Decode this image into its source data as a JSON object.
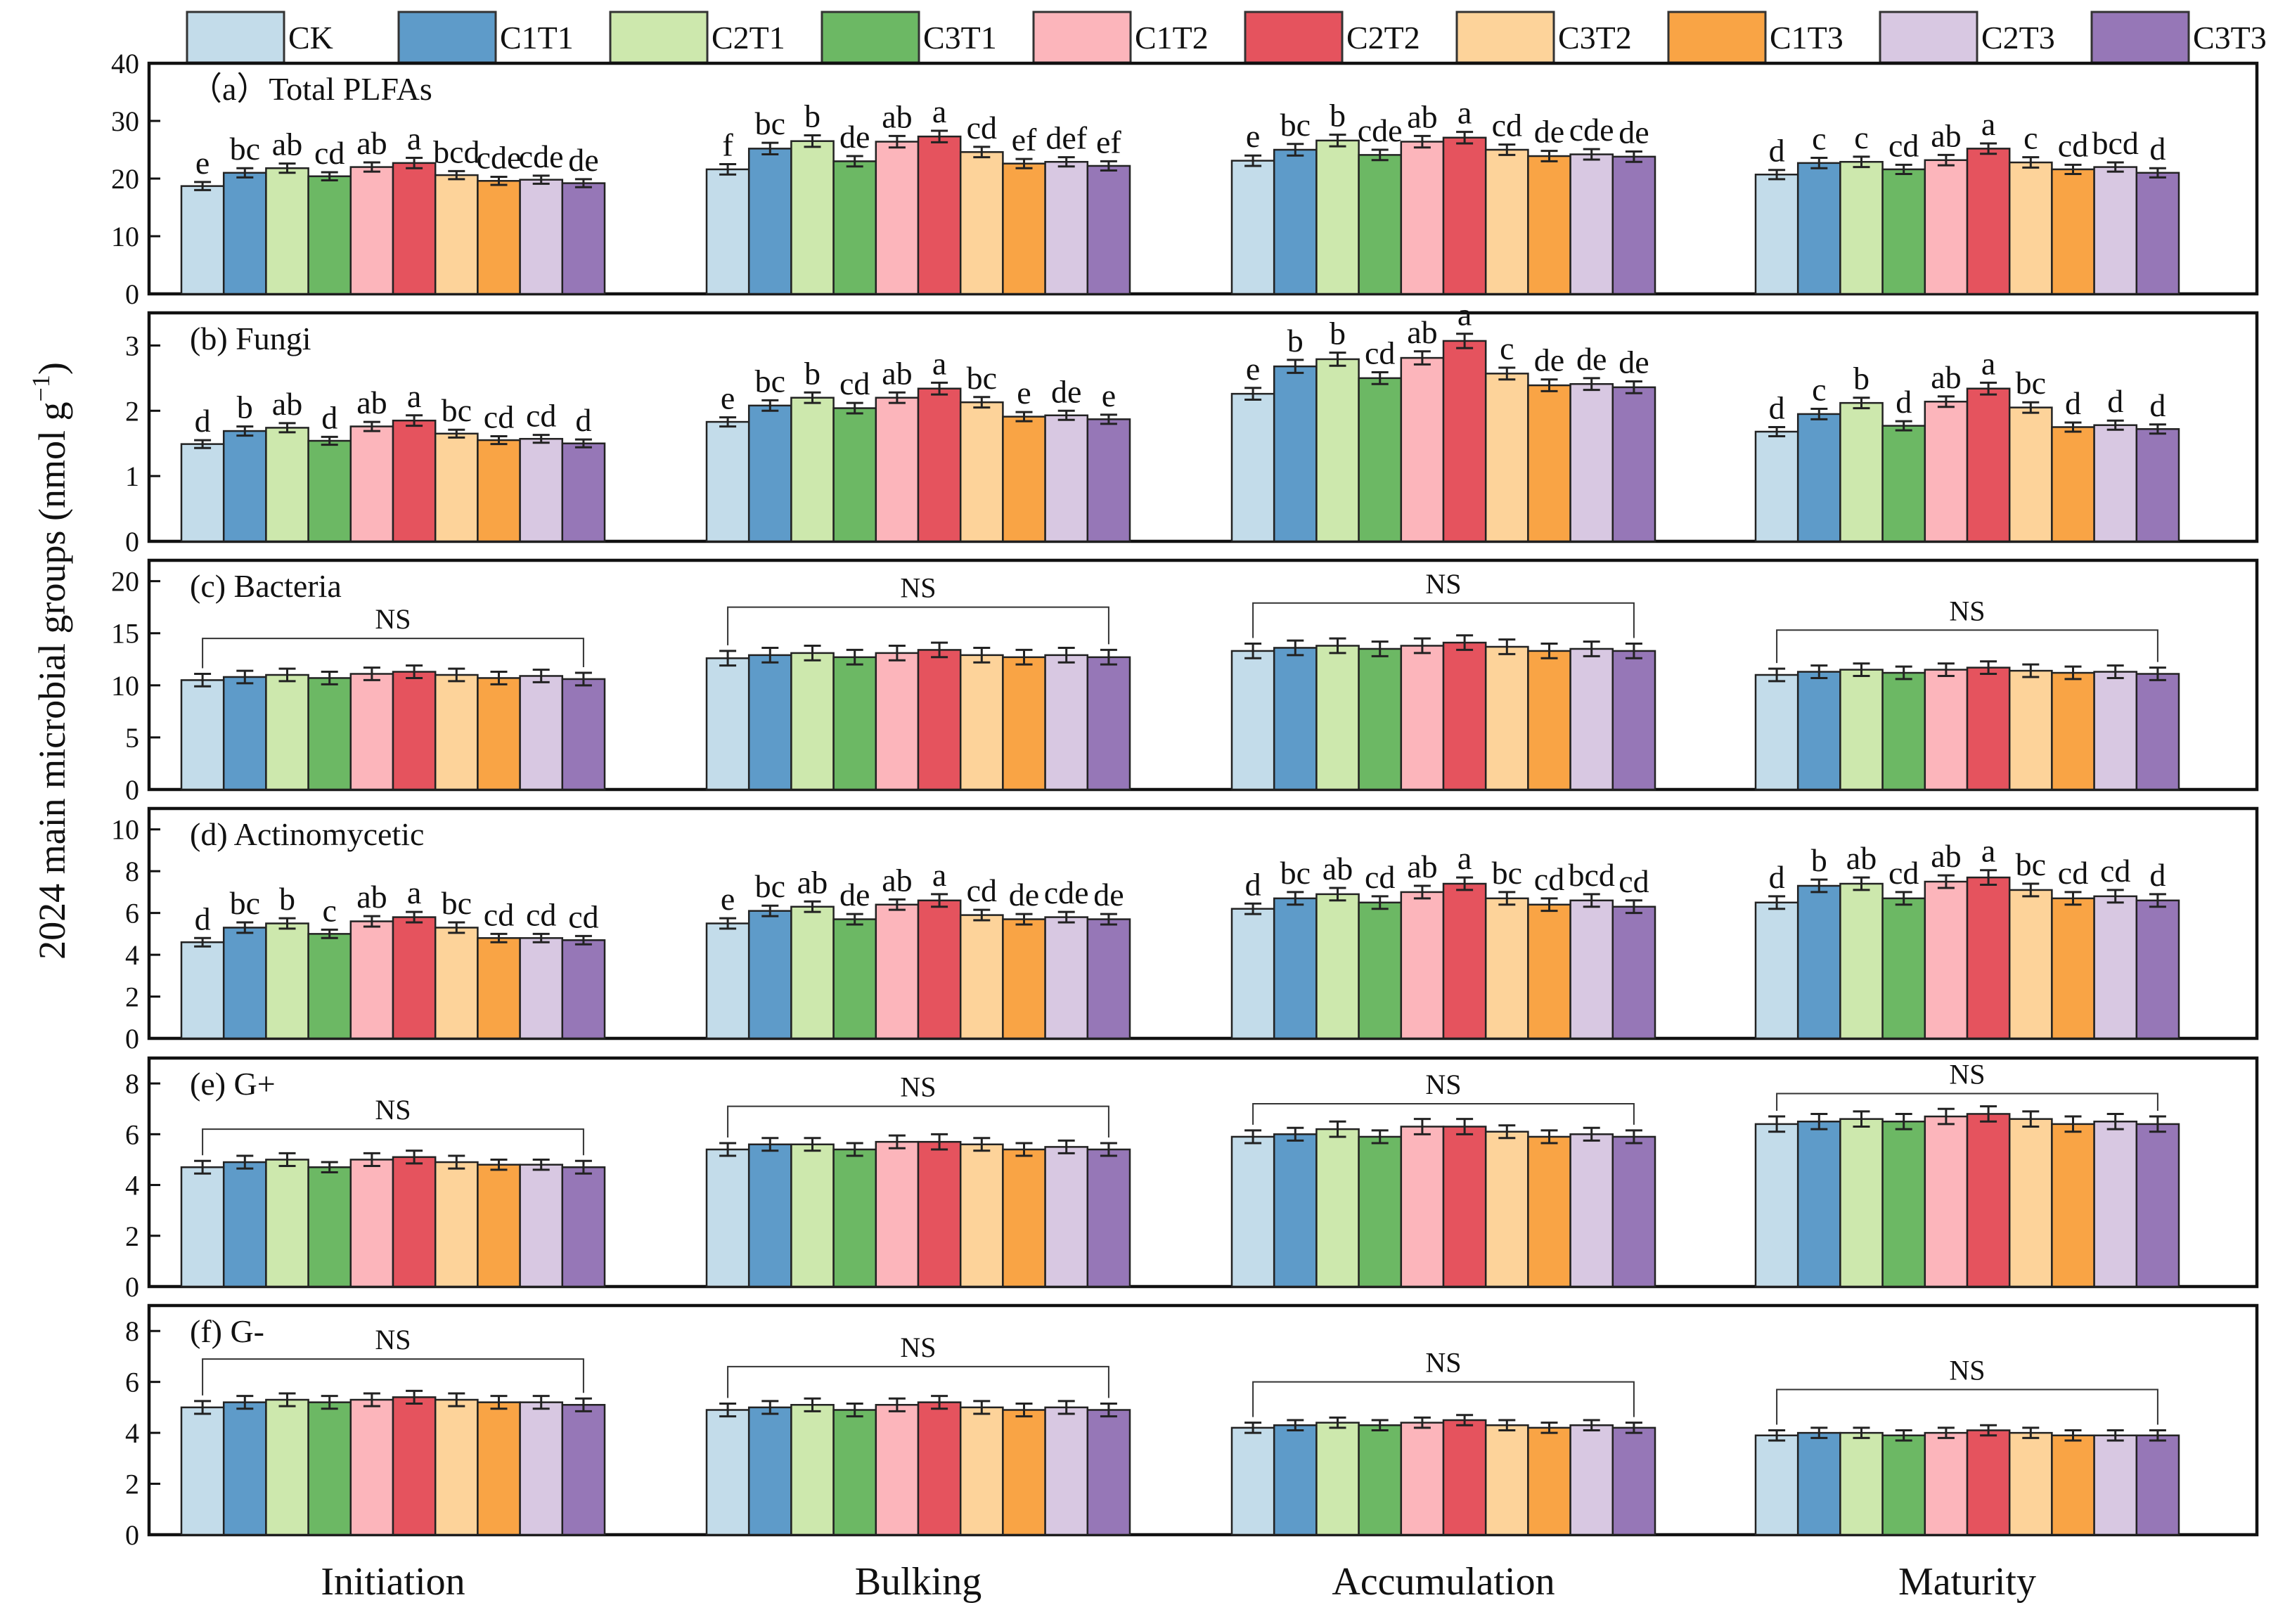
{
  "chart_data": {
    "type": "bar",
    "ylabel": "2024  main microbial groups (nmol g",
    "ylabel_sup": "−1",
    "ylabel_end": ")",
    "stages": [
      "Initiation",
      "Bulking",
      "Accumulation",
      "Maturity"
    ],
    "treatments": [
      "CK",
      "C1T1",
      "C2T1",
      "C3T1",
      "C1T2",
      "C2T2",
      "C3T2",
      "C1T3",
      "C2T3",
      "C3T3"
    ],
    "colors": [
      "#c3dcea",
      "#5e9bc9",
      "#cde8ad",
      "#6cb864",
      "#fcb5bb",
      "#e5535e",
      "#fdd39a",
      "#f9a445",
      "#d8c8e2",
      "#9677b7"
    ],
    "legend_position": "top",
    "panels": [
      {
        "title": "（a）Total PLFAs",
        "ylim": [
          0,
          40
        ],
        "yticks": [
          "0",
          "10",
          "20",
          "30",
          "40"
        ],
        "yticks_values": [
          0,
          10,
          20,
          30,
          40
        ],
        "groups": [
          {
            "values": [
              18.7,
              21.0,
              21.8,
              20.4,
              22.0,
              22.7,
              20.6,
              19.6,
              19.8,
              19.2
            ],
            "errors": [
              0.7,
              0.8,
              0.8,
              0.7,
              0.8,
              0.9,
              0.7,
              0.7,
              0.7,
              0.7
            ],
            "labels": [
              "e",
              "bc",
              "ab",
              "cd",
              "ab",
              "a",
              "bcd",
              "cde",
              "cde",
              "de"
            ],
            "ns": false
          },
          {
            "values": [
              21.6,
              25.2,
              26.5,
              23.0,
              26.4,
              27.3,
              24.6,
              22.6,
              22.9,
              22.2
            ],
            "errors": [
              0.9,
              1.0,
              1.0,
              0.9,
              1.0,
              1.0,
              0.9,
              0.8,
              0.8,
              0.8
            ],
            "labels": [
              "f",
              "bc",
              "b",
              "de",
              "ab",
              "a",
              "cd",
              "ef",
              "def",
              "ef"
            ],
            "ns": false
          },
          {
            "values": [
              23.1,
              25.0,
              26.6,
              24.1,
              26.4,
              27.1,
              25.0,
              23.9,
              24.2,
              23.8
            ],
            "errors": [
              0.9,
              1.0,
              1.0,
              0.9,
              1.0,
              1.0,
              0.9,
              0.9,
              0.9,
              0.9
            ],
            "labels": [
              "e",
              "bc",
              "b",
              "cde",
              "ab",
              "a",
              "cd",
              "de",
              "cde",
              "de"
            ],
            "ns": false
          },
          {
            "values": [
              20.7,
              22.7,
              22.9,
              21.6,
              23.2,
              25.2,
              22.8,
              21.6,
              22.0,
              21.0
            ],
            "errors": [
              0.8,
              0.9,
              0.9,
              0.8,
              0.9,
              0.9,
              0.9,
              0.8,
              0.8,
              0.8
            ],
            "labels": [
              "d",
              "c",
              "c",
              "cd",
              "ab",
              "a",
              "c",
              "cd",
              "bcd",
              "d"
            ],
            "ns": false
          }
        ]
      },
      {
        "title": "(b)  Fungi",
        "ylim": [
          0,
          3.5
        ],
        "yticks": [
          "0",
          "1",
          "2",
          "3"
        ],
        "yticks_values": [
          0,
          1,
          2,
          3
        ],
        "groups": [
          {
            "values": [
              1.49,
              1.69,
              1.74,
              1.54,
              1.76,
              1.85,
              1.65,
              1.55,
              1.57,
              1.5
            ],
            "errors": [
              0.06,
              0.07,
              0.07,
              0.06,
              0.07,
              0.08,
              0.06,
              0.06,
              0.06,
              0.06
            ],
            "labels": [
              "d",
              "b",
              "ab",
              "d",
              "ab",
              "a",
              "bc",
              "cd",
              "cd",
              "d"
            ],
            "ns": false
          },
          {
            "values": [
              1.83,
              2.08,
              2.2,
              2.04,
              2.2,
              2.34,
              2.13,
              1.91,
              1.93,
              1.87
            ],
            "errors": [
              0.07,
              0.08,
              0.08,
              0.08,
              0.08,
              0.09,
              0.08,
              0.07,
              0.07,
              0.07
            ],
            "labels": [
              "e",
              "bc",
              "b",
              "cd",
              "ab",
              "a",
              "bc",
              "e",
              "de",
              "e"
            ],
            "ns": false
          },
          {
            "values": [
              2.26,
              2.68,
              2.79,
              2.5,
              2.81,
              3.07,
              2.57,
              2.39,
              2.41,
              2.36
            ],
            "errors": [
              0.09,
              0.1,
              0.1,
              0.09,
              0.1,
              0.11,
              0.09,
              0.09,
              0.09,
              0.09
            ],
            "labels": [
              "e",
              "b",
              "b",
              "cd",
              "ab",
              "a",
              "c",
              "de",
              "de",
              "de"
            ],
            "ns": false
          },
          {
            "values": [
              1.68,
              1.95,
              2.12,
              1.77,
              2.14,
              2.34,
              2.05,
              1.75,
              1.78,
              1.72
            ],
            "errors": [
              0.07,
              0.08,
              0.08,
              0.07,
              0.08,
              0.09,
              0.08,
              0.07,
              0.07,
              0.07
            ],
            "labels": [
              "d",
              "c",
              "b",
              "d",
              "ab",
              "a",
              "bc",
              "d",
              "d",
              "d"
            ],
            "ns": false
          }
        ]
      },
      {
        "title": "(c) Bacteria",
        "ylim": [
          0,
          22
        ],
        "yticks": [
          "0",
          "5",
          "10",
          "15",
          "20"
        ],
        "yticks_values": [
          0,
          5,
          10,
          15,
          20
        ],
        "groups": [
          {
            "values": [
              10.5,
              10.8,
              11.0,
              10.7,
              11.1,
              11.3,
              11.0,
              10.7,
              10.9,
              10.6
            ],
            "errors": [
              0.6,
              0.6,
              0.6,
              0.6,
              0.6,
              0.6,
              0.6,
              0.6,
              0.6,
              0.6
            ],
            "labels": [],
            "ns": true,
            "ns_label": "NS",
            "ns_y": 14.5
          },
          {
            "values": [
              12.6,
              12.9,
              13.1,
              12.7,
              13.1,
              13.4,
              12.9,
              12.7,
              12.9,
              12.7
            ],
            "errors": [
              0.7,
              0.7,
              0.7,
              0.7,
              0.7,
              0.7,
              0.7,
              0.7,
              0.7,
              0.7
            ],
            "labels": [],
            "ns": true,
            "ns_label": "NS",
            "ns_y": 17.5
          },
          {
            "values": [
              13.3,
              13.6,
              13.8,
              13.5,
              13.8,
              14.1,
              13.7,
              13.3,
              13.5,
              13.3
            ],
            "errors": [
              0.7,
              0.7,
              0.7,
              0.7,
              0.7,
              0.7,
              0.7,
              0.7,
              0.7,
              0.7
            ],
            "labels": [],
            "ns": true,
            "ns_label": "NS",
            "ns_y": 17.9
          },
          {
            "values": [
              11.0,
              11.3,
              11.5,
              11.2,
              11.5,
              11.7,
              11.4,
              11.2,
              11.3,
              11.1
            ],
            "errors": [
              0.6,
              0.6,
              0.6,
              0.6,
              0.6,
              0.6,
              0.6,
              0.6,
              0.6,
              0.6
            ],
            "labels": [],
            "ns": true,
            "ns_label": "NS",
            "ns_y": 15.3
          }
        ]
      },
      {
        "title": "(d) Actinomycetic",
        "ylim": [
          0,
          11
        ],
        "yticks": [
          "0",
          "2",
          "4",
          "6",
          "8",
          "10"
        ],
        "yticks_values": [
          0,
          2,
          4,
          6,
          8,
          10
        ],
        "groups": [
          {
            "values": [
              4.6,
              5.3,
              5.5,
              5.0,
              5.6,
              5.8,
              5.3,
              4.8,
              4.8,
              4.7
            ],
            "errors": [
              0.2,
              0.25,
              0.25,
              0.2,
              0.25,
              0.25,
              0.25,
              0.2,
              0.2,
              0.2
            ],
            "labels": [
              "d",
              "bc",
              "b",
              "c",
              "ab",
              "a",
              "bc",
              "cd",
              "cd",
              "cd"
            ],
            "ns": false
          },
          {
            "values": [
              5.5,
              6.1,
              6.3,
              5.7,
              6.4,
              6.6,
              5.9,
              5.7,
              5.8,
              5.7
            ],
            "errors": [
              0.25,
              0.25,
              0.25,
              0.25,
              0.25,
              0.3,
              0.25,
              0.25,
              0.25,
              0.25
            ],
            "labels": [
              "e",
              "bc",
              "ab",
              "de",
              "ab",
              "a",
              "cd",
              "de",
              "cde",
              "de"
            ],
            "ns": false
          },
          {
            "values": [
              6.2,
              6.7,
              6.9,
              6.5,
              7.0,
              7.4,
              6.7,
              6.4,
              6.6,
              6.3
            ],
            "errors": [
              0.25,
              0.3,
              0.3,
              0.3,
              0.3,
              0.3,
              0.3,
              0.3,
              0.3,
              0.3
            ],
            "labels": [
              "d",
              "bc",
              "ab",
              "cd",
              "ab",
              "a",
              "bc",
              "cd",
              "bcd",
              "cd"
            ],
            "ns": false
          },
          {
            "values": [
              6.5,
              7.3,
              7.4,
              6.7,
              7.5,
              7.7,
              7.1,
              6.7,
              6.8,
              6.6
            ],
            "errors": [
              0.3,
              0.3,
              0.3,
              0.3,
              0.3,
              0.35,
              0.3,
              0.3,
              0.3,
              0.3
            ],
            "labels": [
              "d",
              "b",
              "ab",
              "cd",
              "ab",
              "a",
              "bc",
              "cd",
              "cd",
              "d"
            ],
            "ns": false
          }
        ]
      },
      {
        "title": "(e)  G+",
        "ylim": [
          0,
          9
        ],
        "yticks": [
          "0",
          "2",
          "4",
          "6",
          "8"
        ],
        "yticks_values": [
          0,
          2,
          4,
          6,
          8
        ],
        "groups": [
          {
            "values": [
              4.7,
              4.9,
              5.0,
              4.7,
              5.0,
              5.1,
              4.9,
              4.8,
              4.8,
              4.7
            ],
            "errors": [
              0.25,
              0.25,
              0.25,
              0.2,
              0.25,
              0.25,
              0.25,
              0.2,
              0.2,
              0.25
            ],
            "labels": [],
            "ns": true,
            "ns_label": "NS",
            "ns_y": 6.2
          },
          {
            "values": [
              5.4,
              5.6,
              5.6,
              5.4,
              5.7,
              5.7,
              5.6,
              5.4,
              5.5,
              5.4
            ],
            "errors": [
              0.25,
              0.25,
              0.25,
              0.25,
              0.25,
              0.3,
              0.25,
              0.25,
              0.25,
              0.25
            ],
            "labels": [],
            "ns": true,
            "ns_label": "NS",
            "ns_y": 7.1
          },
          {
            "values": [
              5.9,
              6.0,
              6.2,
              5.9,
              6.3,
              6.3,
              6.1,
              5.9,
              6.0,
              5.9
            ],
            "errors": [
              0.25,
              0.25,
              0.3,
              0.25,
              0.3,
              0.3,
              0.25,
              0.25,
              0.25,
              0.25
            ],
            "labels": [],
            "ns": true,
            "ns_label": "NS",
            "ns_y": 7.2
          },
          {
            "values": [
              6.4,
              6.5,
              6.6,
              6.5,
              6.7,
              6.8,
              6.6,
              6.4,
              6.5,
              6.4
            ],
            "errors": [
              0.3,
              0.3,
              0.3,
              0.3,
              0.3,
              0.3,
              0.3,
              0.3,
              0.3,
              0.3
            ],
            "labels": [],
            "ns": true,
            "ns_label": "NS",
            "ns_y": 7.6
          }
        ]
      },
      {
        "title": "(f)  G-",
        "ylim": [
          0,
          9
        ],
        "yticks": [
          "0",
          "2",
          "4",
          "6",
          "8"
        ],
        "yticks_values": [
          0,
          2,
          4,
          6,
          8
        ],
        "groups": [
          {
            "values": [
              5.0,
              5.2,
              5.3,
              5.2,
              5.3,
              5.4,
              5.3,
              5.2,
              5.2,
              5.1
            ],
            "errors": [
              0.25,
              0.25,
              0.25,
              0.25,
              0.25,
              0.25,
              0.25,
              0.25,
              0.25,
              0.25
            ],
            "labels": [],
            "ns": true,
            "ns_label": "NS",
            "ns_y": 6.9
          },
          {
            "values": [
              4.9,
              5.0,
              5.1,
              4.9,
              5.1,
              5.2,
              5.0,
              4.9,
              5.0,
              4.9
            ],
            "errors": [
              0.25,
              0.25,
              0.25,
              0.25,
              0.25,
              0.25,
              0.25,
              0.25,
              0.25,
              0.25
            ],
            "labels": [],
            "ns": true,
            "ns_label": "NS",
            "ns_y": 6.6
          },
          {
            "values": [
              4.2,
              4.3,
              4.4,
              4.3,
              4.4,
              4.5,
              4.3,
              4.2,
              4.3,
              4.2
            ],
            "errors": [
              0.2,
              0.2,
              0.2,
              0.2,
              0.2,
              0.2,
              0.2,
              0.2,
              0.2,
              0.2
            ],
            "labels": [],
            "ns": true,
            "ns_label": "NS",
            "ns_y": 6.0
          },
          {
            "values": [
              3.9,
              4.0,
              4.0,
              3.9,
              4.0,
              4.1,
              4.0,
              3.9,
              3.9,
              3.9
            ],
            "errors": [
              0.2,
              0.2,
              0.2,
              0.2,
              0.2,
              0.2,
              0.2,
              0.2,
              0.2,
              0.2
            ],
            "labels": [],
            "ns": true,
            "ns_label": "NS",
            "ns_y": 5.7
          }
        ]
      }
    ]
  }
}
